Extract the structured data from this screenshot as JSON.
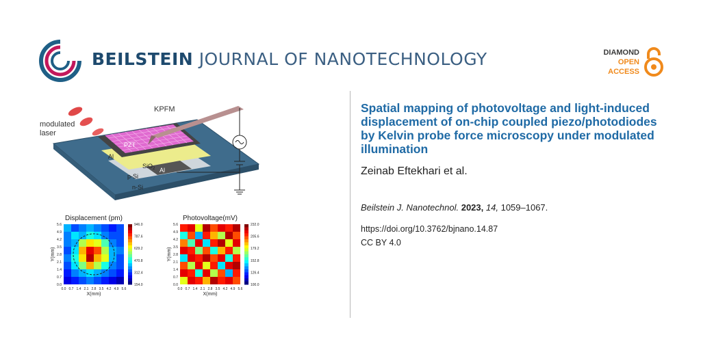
{
  "header": {
    "journal_bold": "BEILSTEIN",
    "journal_rest": "JOURNAL OF NANOTECHNOLOGY",
    "oa_line1": "DIAMOND",
    "oa_line2": "OPEN",
    "oa_line3": "ACCESS"
  },
  "article": {
    "title": "Spatial mapping of photovoltage and light-induced displacement of on-chip coupled piezo/photodiodes by Kelvin probe force microscopy under modulated illumination",
    "authors": "Zeinab Eftekhari et al.",
    "journal_abbrev": "Beilstein J. Nanotechnol.",
    "year": "2023,",
    "volume": "14,",
    "pages": "1059–1067.",
    "doi": "https://doi.org/10.3762/bjnano.14.87",
    "license": "CC BY 4.0"
  },
  "figure": {
    "schematic": {
      "kpfm": "KPFM",
      "laser_line1": "modulated",
      "laser_line2": "laser",
      "pzt": "PZT",
      "al_top": "Al",
      "sio2": "SiO",
      "sio2_sub": "2",
      "psi": "p-Si",
      "al_bottom": "Al",
      "nsi": "n-Si"
    },
    "maps": [
      {
        "title": "Displacement (pm)",
        "xlabel": "X(mm)",
        "ylabel": "Y(mm)",
        "x_ticks": [
          "0.0",
          "0.7",
          "1.4",
          "2.1",
          "2.8",
          "3.5",
          "4.2",
          "4.9",
          "5.6"
        ],
        "y_ticks": [
          "5.6",
          "4.9",
          "4.2",
          "3.5",
          "2.8",
          "2.1",
          "1.4",
          "0.7",
          "0.0"
        ],
        "colorbar_ticks": [
          "946.0",
          "787.6",
          "629.2",
          "470.8",
          "312.4",
          "154.0"
        ]
      },
      {
        "title": "Photovoltage(mV)",
        "xlabel": "X(mm)",
        "ylabel": "Y(mm)",
        "x_ticks": [
          "0.0",
          "0.7",
          "1.4",
          "2.1",
          "2.8",
          "3.5",
          "4.2",
          "4.9",
          "5.6"
        ],
        "y_ticks": [
          "5.6",
          "4.9",
          "4.2",
          "3.5",
          "2.8",
          "2.1",
          "1.4",
          "0.7",
          "0.0"
        ],
        "colorbar_ticks": [
          "232.0",
          "205.6",
          "179.2",
          "152.8",
          "126.4",
          "100.0"
        ]
      }
    ]
  }
}
